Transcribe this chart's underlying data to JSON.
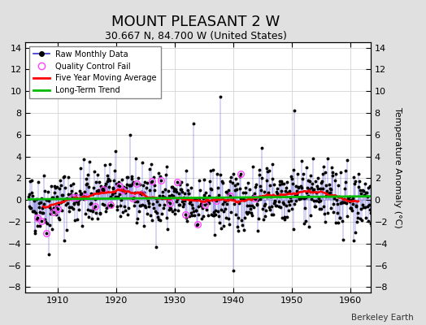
{
  "title": "MOUNT PLEASANT 2 W",
  "subtitle": "30.667 N, 84.700 W (United States)",
  "ylabel": "Temperature Anomaly (°C)",
  "watermark": "Berkeley Earth",
  "xlim": [
    1904.5,
    1963.5
  ],
  "ylim": [
    -8.5,
    14.5
  ],
  "yticks": [
    -8,
    -6,
    -4,
    -2,
    0,
    2,
    4,
    6,
    8,
    10,
    12,
    14
  ],
  "xticks": [
    1910,
    1920,
    1930,
    1940,
    1950,
    1960
  ],
  "bg_color": "#e0e0e0",
  "plot_bg_color": "#ffffff",
  "raw_line_color": "#3333cc",
  "raw_marker_color": "#000000",
  "qc_fail_color": "#ff44ff",
  "moving_avg_color": "#ff0000",
  "trend_color": "#00bb00",
  "title_fontsize": 13,
  "subtitle_fontsize": 9,
  "seed": 42
}
